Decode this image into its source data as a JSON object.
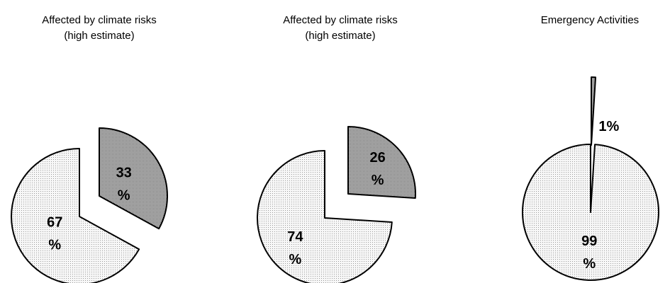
{
  "chart_data": [
    {
      "type": "pie",
      "title_lines": [
        "Affected by climate risks",
        "(high estimate)"
      ],
      "slices": [
        {
          "value": 33,
          "label_lines": [
            "33",
            "%"
          ],
          "fill": "dark",
          "exploded": true
        },
        {
          "value": 67,
          "label_lines": [
            "67",
            "%"
          ],
          "fill": "light",
          "exploded": false
        }
      ]
    },
    {
      "type": "pie",
      "title_lines": [
        "Affected by climate risks",
        "(high estimate)"
      ],
      "slices": [
        {
          "value": 26,
          "label_lines": [
            "26",
            "%"
          ],
          "fill": "dark",
          "exploded": true
        },
        {
          "value": 74,
          "label_lines": [
            "74",
            "%"
          ],
          "fill": "light",
          "exploded": false
        }
      ]
    },
    {
      "type": "pie",
      "title_lines": [
        "Emergency Activities"
      ],
      "slices": [
        {
          "value": 1,
          "label_lines": [
            "1%"
          ],
          "fill": "dark",
          "exploded": true
        },
        {
          "value": 99,
          "label_lines": [
            "99",
            "%"
          ],
          "fill": "light",
          "exploded": false
        }
      ]
    }
  ],
  "colors": {
    "outline": "#000000",
    "dark_fill": "#b4b4b4",
    "light_fill": "#f4f4f4",
    "background": "#ffffff"
  }
}
